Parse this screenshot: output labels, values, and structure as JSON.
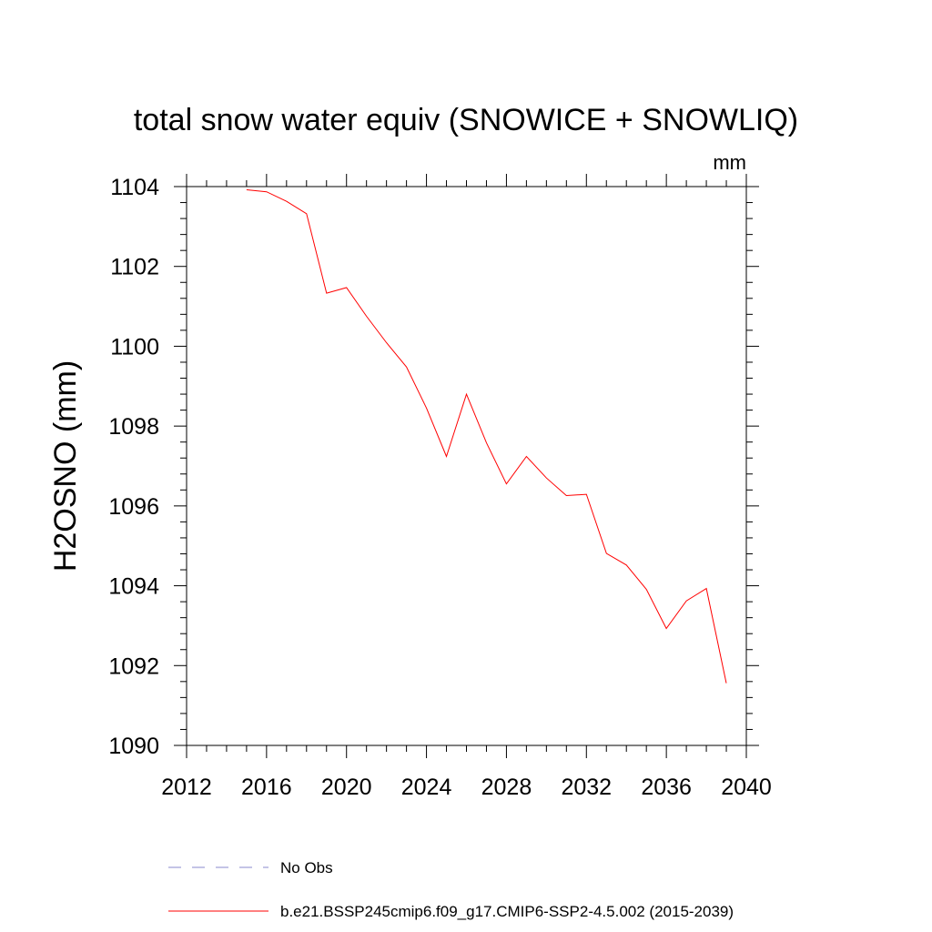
{
  "chart_data": {
    "type": "line",
    "title": "total snow water equiv (SNOWICE + SNOWLIQ)",
    "units": "mm",
    "xlabel": "",
    "ylabel": "H2OSNO  (mm)",
    "xlim": [
      2012,
      2040
    ],
    "ylim": [
      1090,
      1104
    ],
    "x_ticks": [
      2012,
      2016,
      2020,
      2024,
      2028,
      2032,
      2036,
      2040
    ],
    "y_ticks": [
      1090,
      1092,
      1094,
      1096,
      1098,
      1100,
      1102,
      1104
    ],
    "grid": false,
    "series": [
      {
        "name": "b.e21.BSSP245cmip6.f09_g17.CMIP6-SSP2-4.5.002 (2015-2039)",
        "color": "#ff0000",
        "dash": "solid",
        "x": [
          2015,
          2016,
          2017,
          2018,
          2019,
          2020,
          2021,
          2022,
          2023,
          2024,
          2025,
          2026,
          2027,
          2028,
          2029,
          2030,
          2031,
          2032,
          2033,
          2034,
          2035,
          2036,
          2037,
          2038,
          2039
        ],
        "y": [
          1103.92,
          1103.87,
          1103.63,
          1103.32,
          1101.33,
          1101.47,
          1100.75,
          1100.09,
          1099.48,
          1098.45,
          1097.24,
          1098.8,
          1097.58,
          1096.55,
          1097.24,
          1096.7,
          1096.26,
          1096.29,
          1094.81,
          1094.52,
          1093.91,
          1092.93,
          1093.62,
          1093.93,
          1091.56
        ]
      }
    ],
    "legend": {
      "placement": "bottom-left",
      "entries": [
        {
          "label": "No Obs",
          "color": "#8888cc",
          "dash": "dashed"
        },
        {
          "label": "b.e21.BSSP245cmip6.f09_g17.CMIP6-SSP2-4.5.002 (2015-2039)",
          "color": "#ff0000",
          "dash": "solid"
        }
      ]
    }
  }
}
